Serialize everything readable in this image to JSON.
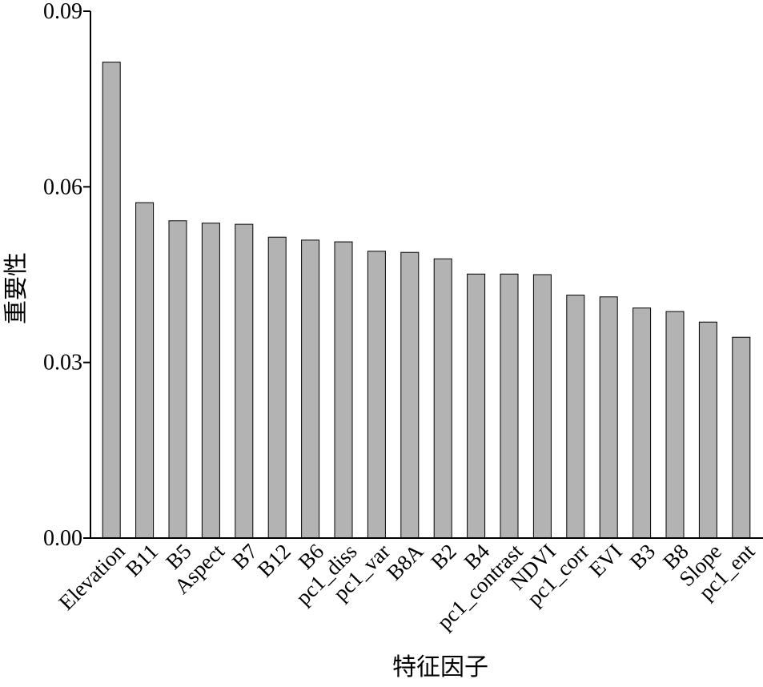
{
  "chart_data": {
    "type": "bar",
    "x_label": "特征因子",
    "y_label": "重要性",
    "categories": [
      "Elevation",
      "B11",
      "B5",
      "Aspect",
      "B7",
      "B12",
      "B6",
      "pc1_diss",
      "pc1_var",
      "B8A",
      "B2",
      "B4",
      "pc1_contrast",
      "NDVI",
      "pc1_corr",
      "EVI",
      "B3",
      "B8",
      "Slope",
      "pc1_ent"
    ],
    "values": [
      0.0813,
      0.0573,
      0.0542,
      0.0538,
      0.0536,
      0.0514,
      0.0509,
      0.0506,
      0.049,
      0.0488,
      0.0477,
      0.0451,
      0.0451,
      0.045,
      0.0415,
      0.0412,
      0.0393,
      0.0387,
      0.0369,
      0.0343
    ],
    "color": "#b3b3b3",
    "ylim": [
      0,
      0.09
    ],
    "yticks": [
      {
        "value": 0,
        "label": "0.00"
      },
      0.03,
      0.06,
      0.09
    ],
    "grid": false
  }
}
